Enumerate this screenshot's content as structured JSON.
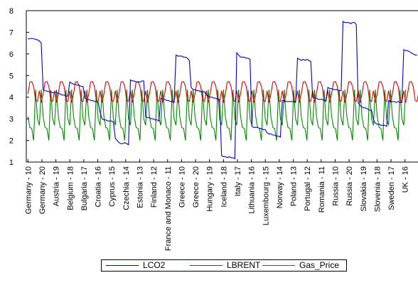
{
  "chart_data": {
    "type": "line",
    "title": "",
    "xlabel": "",
    "ylabel": "",
    "ylim": [
      1,
      8
    ],
    "yticks": [
      1,
      2,
      3,
      4,
      5,
      6,
      7,
      8
    ],
    "grid": false,
    "legend_position": "bottom",
    "x_tick_labels": [
      "Germany - 10",
      "Germany - 20",
      "Austria - 19",
      "Belgium - 18",
      "Bulgaria - 17",
      "Croatia - 16",
      "Cyprus - 15",
      "Czechia - 14",
      "Estonia - 13",
      "Finland - 12",
      "France and Monaco - 11",
      "Greece - 10",
      "Greece - 20",
      "Hungary - 19",
      "Iceland - 18",
      "Italy - 17",
      "Lithuania - 16",
      "Luxembourg - 15",
      "Norway - 14",
      "Poland - 13",
      "Portugal - 12",
      "Romania - 11",
      "Russia - 10",
      "Russia - 20",
      "Slovakia - 19",
      "Slovenia - 18",
      "Sweden - 17",
      "UK - 16"
    ],
    "series": [
      {
        "name": "LCO2",
        "color": "#0000cc",
        "values": [
          6.7,
          6.7,
          6.72,
          6.7,
          6.68,
          6.65,
          6.6,
          6.5,
          4.35,
          4.3,
          4.28,
          4.25,
          4.25,
          4.2,
          4.22,
          4.25,
          4.15,
          4.15,
          4.1,
          4.1,
          4.05,
          4.05,
          4.7,
          4.65,
          4.6,
          4.6,
          4.55,
          4.55,
          4.5,
          4.5,
          3.95,
          3.9,
          3.9,
          3.85,
          3.85,
          3.8,
          3.8,
          3.75,
          3.3,
          3.0,
          2.95,
          2.95,
          2.9,
          2.9,
          2.9,
          2.85,
          2.1,
          2.0,
          1.9,
          1.85,
          1.85,
          1.9,
          1.85,
          1.8,
          4.8,
          4.75,
          4.75,
          4.7,
          4.7,
          4.7,
          4.75,
          4.75,
          3.1,
          3.05,
          3.05,
          3.0,
          3.0,
          2.95,
          2.95,
          2.9,
          3.95,
          3.9,
          3.9,
          3.85,
          3.85,
          3.8,
          3.8,
          3.75,
          5.95,
          5.9,
          5.9,
          5.9,
          5.85,
          5.85,
          5.8,
          5.7,
          4.45,
          4.35,
          4.35,
          4.3,
          4.3,
          4.25,
          4.25,
          4.25,
          4.1,
          4.05,
          4.0,
          4.0,
          3.95,
          3.95,
          3.9,
          3.9,
          1.3,
          1.25,
          1.25,
          1.2,
          1.25,
          1.2,
          1.2,
          1.15,
          6.05,
          5.95,
          5.85,
          5.85,
          5.85,
          5.8,
          5.8,
          5.75,
          2.65,
          2.6,
          2.6,
          2.6,
          2.55,
          2.55,
          2.5,
          2.5,
          2.35,
          2.3,
          2.3,
          2.25,
          2.25,
          2.2,
          2.2,
          2.15,
          3.85,
          3.85,
          3.8,
          3.8,
          3.8,
          3.8,
          3.8,
          3.75,
          5.8,
          5.75,
          5.7,
          5.75,
          5.7,
          5.75,
          5.7,
          5.65,
          4.0,
          3.95,
          3.95,
          3.9,
          3.9,
          3.9,
          3.85,
          3.85,
          4.45,
          4.4,
          4.4,
          4.35,
          4.35,
          4.35,
          4.3,
          4.3,
          7.5,
          7.45,
          7.45,
          7.45,
          7.4,
          7.45,
          7.45,
          7.35,
          3.75,
          3.6,
          3.55,
          3.5,
          3.5,
          3.45,
          3.4,
          3.4,
          2.95,
          2.8,
          2.75,
          2.75,
          2.7,
          2.7,
          2.7,
          2.65,
          3.85,
          3.8,
          3.8,
          3.8,
          3.75,
          3.8,
          3.75,
          3.75,
          6.2,
          6.15,
          6.15,
          6.1,
          6.05,
          6.0,
          5.95,
          5.95
        ]
      },
      {
        "name": "LBRENT",
        "color": "#dd0000",
        "values": [
          4.15,
          4.7,
          4.72,
          4.5,
          3.85,
          3.8,
          4.3,
          3.75,
          4.15,
          4.7,
          4.72,
          4.5,
          3.85,
          3.8,
          4.3,
          3.75,
          4.15,
          4.7,
          4.72,
          4.5,
          3.85,
          3.8,
          4.3,
          3.75,
          4.15,
          4.7,
          4.72,
          4.5,
          3.85,
          3.8,
          4.3,
          3.75,
          4.15,
          4.7,
          4.72,
          4.5,
          3.85,
          3.8,
          4.3,
          3.75,
          4.15,
          4.7,
          4.72,
          4.5,
          3.85,
          3.8,
          4.3,
          3.75,
          4.15,
          4.7,
          4.72,
          4.5,
          3.85,
          3.8,
          4.3,
          3.75,
          4.15,
          4.7,
          4.72,
          4.5,
          3.85,
          3.8,
          4.3,
          3.75,
          4.15,
          4.7,
          4.72,
          4.5,
          3.85,
          3.8,
          4.3,
          3.75,
          4.15,
          4.7,
          4.72,
          4.5,
          3.85,
          3.8,
          4.3,
          3.75,
          4.15,
          4.7,
          4.72,
          4.5,
          3.85,
          3.8,
          4.3,
          3.75,
          4.15,
          4.7,
          4.72,
          4.5,
          3.85,
          3.8,
          4.3,
          3.75,
          4.15,
          4.7,
          4.72,
          4.5,
          3.85,
          3.8,
          4.3,
          3.75,
          4.15,
          4.7,
          4.72,
          4.5,
          3.85,
          3.8,
          4.3,
          3.75,
          4.15,
          4.7,
          4.72,
          4.5,
          3.85,
          3.8,
          4.3,
          3.75,
          4.15,
          4.7,
          4.72,
          4.5,
          3.85,
          3.8,
          4.3,
          3.75,
          4.15,
          4.7,
          4.72,
          4.5,
          3.85,
          3.8,
          4.3,
          3.75,
          4.15,
          4.7,
          4.72,
          4.5,
          3.85,
          3.8,
          4.3,
          3.75,
          4.15,
          4.7,
          4.72,
          4.5,
          3.85,
          3.8,
          4.3,
          3.75,
          4.15,
          4.7,
          4.72,
          4.5,
          3.85,
          3.8,
          4.3,
          3.75,
          4.15,
          4.7,
          4.72,
          4.5,
          3.85,
          3.8,
          4.3,
          3.75,
          4.15,
          4.7,
          4.72,
          4.5,
          3.85,
          3.8,
          4.3,
          3.75,
          4.15,
          4.7,
          4.72,
          4.5,
          3.85,
          3.8,
          4.3,
          3.75,
          4.15,
          4.7,
          4.72,
          4.5,
          3.85,
          3.8,
          4.3,
          3.75,
          4.15,
          4.7,
          4.72,
          4.5,
          3.85,
          3.8,
          4.3,
          3.75,
          4.15,
          4.7,
          4.72,
          4.5,
          3.85,
          3.8,
          4.3,
          3.75
        ]
      },
      {
        "name": "Gas_Price",
        "color": "#008800",
        "values": [
          3.1,
          2.6,
          2.55,
          2.0,
          4.35,
          3.0,
          2.7,
          4.35,
          3.1,
          2.6,
          2.55,
          2.0,
          4.35,
          3.0,
          2.7,
          4.35,
          3.1,
          2.6,
          2.55,
          2.0,
          4.35,
          3.0,
          2.7,
          4.35,
          3.1,
          2.6,
          2.55,
          2.0,
          4.35,
          3.0,
          2.7,
          4.35,
          3.1,
          2.6,
          2.55,
          2.0,
          4.35,
          3.0,
          2.7,
          4.35,
          3.1,
          2.6,
          2.55,
          2.0,
          4.35,
          3.0,
          2.7,
          4.35,
          3.1,
          2.6,
          2.55,
          2.0,
          4.35,
          3.0,
          2.7,
          4.35,
          3.1,
          2.6,
          2.55,
          2.0,
          4.35,
          3.0,
          2.7,
          4.35,
          3.1,
          2.6,
          2.55,
          2.0,
          4.35,
          3.0,
          2.7,
          4.35,
          3.1,
          2.6,
          2.55,
          2.0,
          4.35,
          3.0,
          2.7,
          4.35,
          3.1,
          2.6,
          2.55,
          2.0,
          4.35,
          3.0,
          2.7,
          4.35,
          3.1,
          2.6,
          2.55,
          2.0,
          4.35,
          3.0,
          2.7,
          4.35,
          3.1,
          2.6,
          2.55,
          2.0,
          4.35,
          3.0,
          2.7,
          4.35,
          3.1,
          2.6,
          2.55,
          2.0,
          4.35,
          3.0,
          2.7,
          4.35,
          3.1,
          2.6,
          2.55,
          2.0,
          4.35,
          3.0,
          2.7,
          4.35,
          3.1,
          2.6,
          2.55,
          2.0,
          4.35,
          3.0,
          2.7,
          4.35,
          3.1,
          2.6,
          2.55,
          2.0,
          4.35,
          3.0,
          2.7,
          4.35,
          3.1,
          2.6,
          2.55,
          2.0,
          4.35,
          3.0,
          2.7,
          4.35,
          3.1,
          2.6,
          2.55,
          2.0,
          4.35,
          3.0,
          2.7,
          4.35,
          3.1,
          2.6,
          2.55,
          2.0,
          4.35,
          3.0,
          2.7,
          4.35,
          3.1,
          2.6,
          2.55,
          2.0,
          4.35,
          3.0,
          2.7,
          4.35,
          3.1,
          2.6,
          2.55,
          2.0,
          4.35,
          3.0,
          2.7,
          4.35,
          3.1,
          2.6,
          2.55,
          2.0,
          4.35,
          3.0,
          2.7,
          4.35,
          3.1,
          2.6,
          2.55,
          2.0,
          4.35,
          3.0,
          2.7,
          4.35,
          3.1,
          2.6,
          2.55,
          2.0,
          4.35,
          3.0,
          2.7,
          4.35
        ]
      }
    ]
  }
}
